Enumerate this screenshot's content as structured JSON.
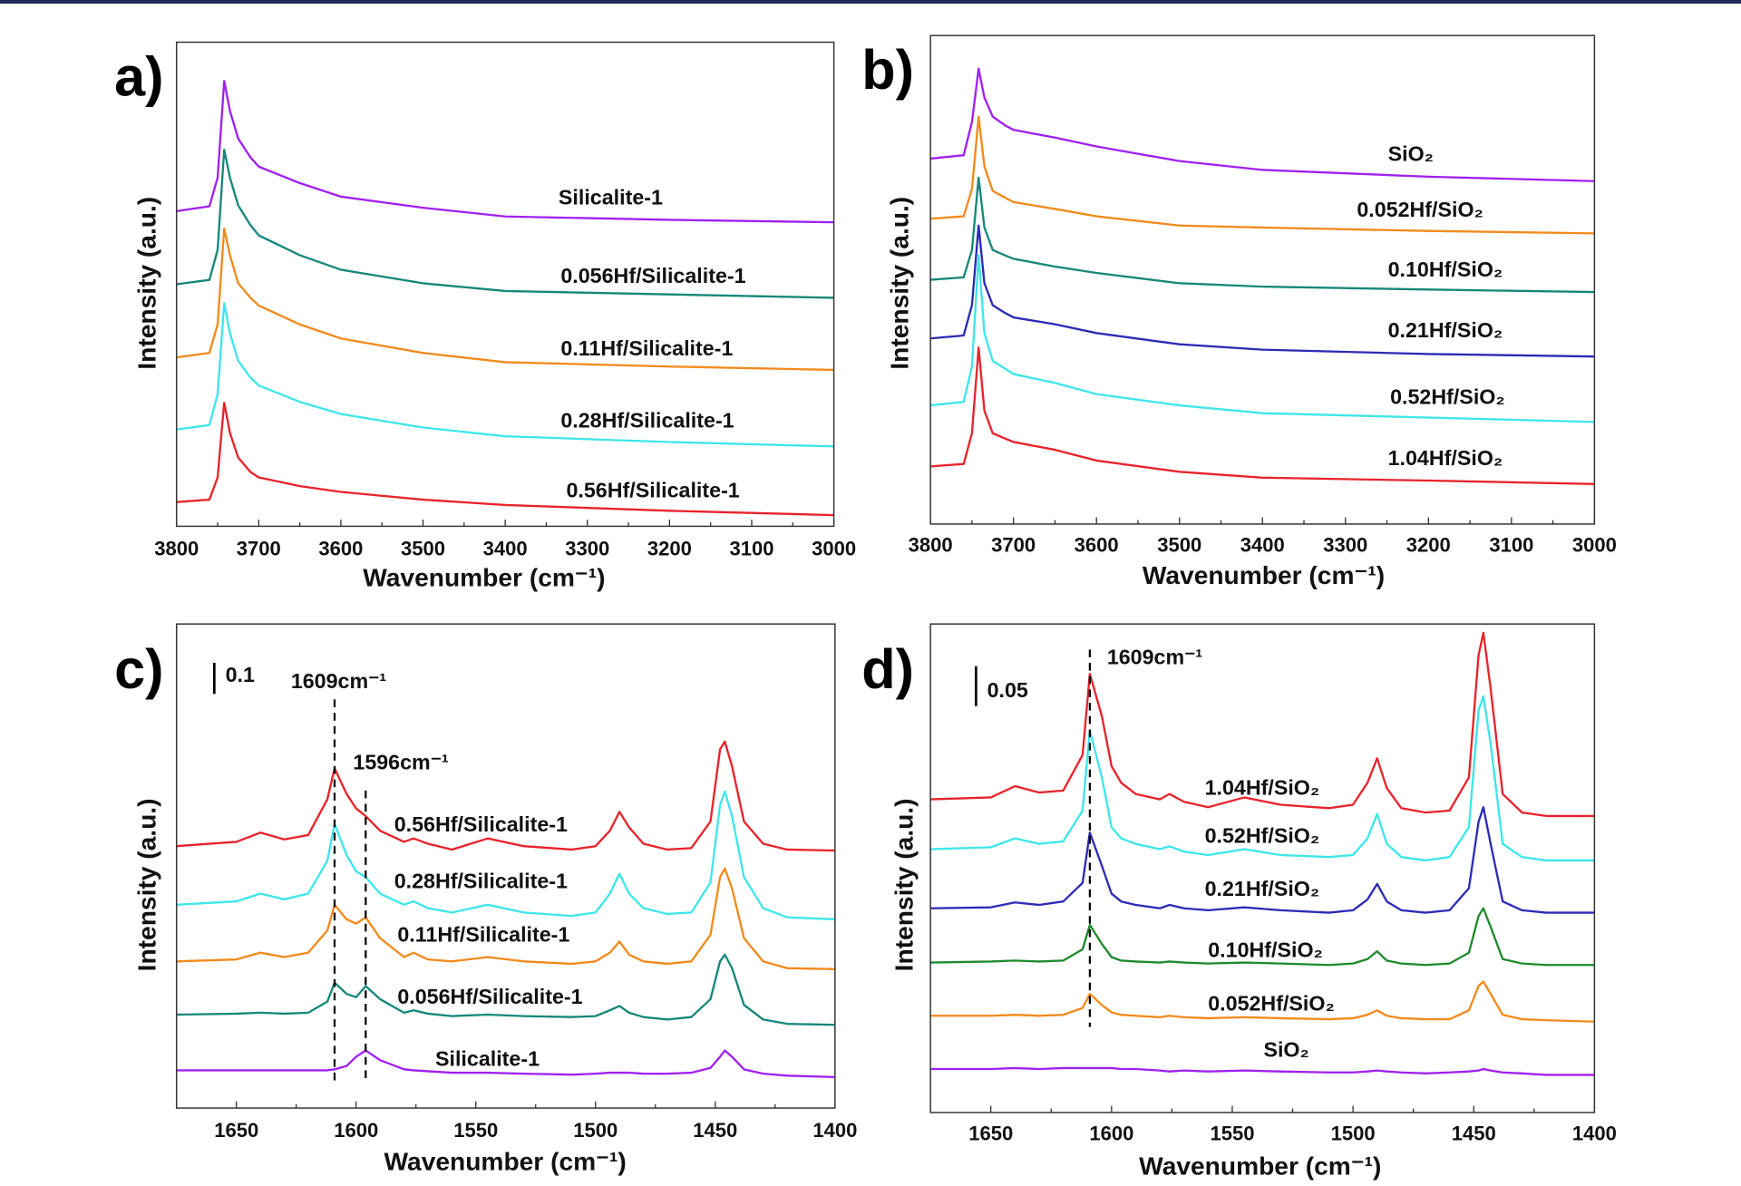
{
  "chart_data": [
    {
      "panel_label": "a)",
      "type": "line",
      "xlabel": "Wavenumber (cm⁻¹)",
      "ylabel": "Intensity (a.u.)",
      "xlim": [
        3800,
        3000
      ],
      "ylim": [
        0,
        10
      ],
      "xticks": [
        "3800",
        "3700",
        "3600",
        "3500",
        "3400",
        "3300",
        "3200",
        "3100",
        "3000"
      ],
      "grid": false,
      "x": [
        3800,
        3760,
        3750,
        3742,
        3735,
        3725,
        3710,
        3700,
        3650,
        3600,
        3500,
        3400,
        3200,
        3000
      ],
      "series": [
        {
          "name": "Silicalite-1",
          "color": "#a020f0",
          "values": [
            6.51,
            6.61,
            7.2,
            9.2,
            8.58,
            8.01,
            7.62,
            7.43,
            7.09,
            6.81,
            6.58,
            6.4,
            6.33,
            6.28
          ]
        },
        {
          "name": "0.056Hf/Silicalite-1",
          "color": "#16877a",
          "values": [
            5.0,
            5.09,
            5.71,
            7.78,
            7.2,
            6.63,
            6.22,
            6.01,
            5.6,
            5.3,
            5.02,
            4.86,
            4.79,
            4.72
          ]
        },
        {
          "name": "0.11Hf/Silicalite-1",
          "color": "#f28a1c",
          "values": [
            3.49,
            3.58,
            4.17,
            6.15,
            5.6,
            5.02,
            4.72,
            4.56,
            4.17,
            3.88,
            3.58,
            3.39,
            3.3,
            3.23
          ]
        },
        {
          "name": "0.28Hf/Silicalite-1",
          "color": "#3ee6ea",
          "values": [
            2.0,
            2.09,
            2.73,
            4.61,
            3.99,
            3.42,
            3.07,
            2.91,
            2.57,
            2.32,
            2.04,
            1.86,
            1.74,
            1.65
          ]
        },
        {
          "name": "0.56Hf/Silicalite-1",
          "color": "#e8232b",
          "values": [
            0.5,
            0.55,
            1.01,
            2.55,
            1.93,
            1.42,
            1.12,
            1.01,
            0.83,
            0.71,
            0.55,
            0.44,
            0.32,
            0.23
          ]
        }
      ]
    },
    {
      "panel_label": "b)",
      "type": "line",
      "xlabel": "Wavenumber (cm⁻¹)",
      "ylabel": "Intensity (a.u.)",
      "xlim": [
        3800,
        3000
      ],
      "ylim": [
        0,
        10
      ],
      "xticks": [
        "3800",
        "3700",
        "3600",
        "3500",
        "3400",
        "3300",
        "3200",
        "3100",
        "3000"
      ],
      "grid": false,
      "x": [
        3800,
        3760,
        3750,
        3742,
        3735,
        3725,
        3710,
        3700,
        3650,
        3600,
        3500,
        3400,
        3200,
        3000
      ],
      "series": [
        {
          "name": "SiO₂",
          "color": "#a020f0",
          "values": [
            7.48,
            7.55,
            8.23,
            9.32,
            8.73,
            8.34,
            8.16,
            8.07,
            7.91,
            7.73,
            7.43,
            7.25,
            7.11,
            7.02
          ]
        },
        {
          "name": "0.052Hf/SiO₂",
          "color": "#f28a1c",
          "values": [
            6.25,
            6.3,
            6.86,
            8.34,
            7.32,
            6.82,
            6.68,
            6.59,
            6.45,
            6.3,
            6.11,
            6.07,
            6.0,
            5.95
          ]
        },
        {
          "name": "0.10Hf/SiO₂",
          "color": "#16877a",
          "values": [
            5.0,
            5.05,
            5.61,
            7.09,
            6.07,
            5.61,
            5.5,
            5.43,
            5.27,
            5.14,
            4.93,
            4.86,
            4.8,
            4.75
          ]
        },
        {
          "name": "0.21Hf/SiO₂",
          "color": "#2b2bb5",
          "values": [
            3.8,
            3.86,
            4.48,
            6.11,
            4.93,
            4.48,
            4.32,
            4.23,
            4.09,
            3.91,
            3.68,
            3.57,
            3.48,
            3.43
          ]
        },
        {
          "name": "0.52Hf/SiO₂",
          "color": "#3ee6ea",
          "values": [
            2.43,
            2.5,
            3.23,
            5.5,
            3.91,
            3.34,
            3.18,
            3.07,
            2.89,
            2.66,
            2.43,
            2.27,
            2.18,
            2.09
          ]
        },
        {
          "name": "1.04Hf/SiO₂",
          "color": "#e8232b",
          "values": [
            1.18,
            1.23,
            1.86,
            3.61,
            2.32,
            1.86,
            1.75,
            1.68,
            1.52,
            1.3,
            1.07,
            0.95,
            0.89,
            0.82
          ]
        }
      ]
    },
    {
      "panel_label": "c)",
      "type": "line",
      "xlabel": "Wavenumber (cm⁻¹)",
      "ylabel": "Intensity (a.u.)",
      "xlim": [
        1675,
        1400
      ],
      "ylim": [
        0,
        10
      ],
      "xticks": [
        "1650",
        "1600",
        "1550",
        "1500",
        "1450",
        "1400"
      ],
      "grid": false,
      "scale_bar": "0.1",
      "markers": [
        {
          "x": 1609,
          "label": "1609cm⁻¹"
        },
        {
          "x": 1596,
          "label": "1596cm⁻¹"
        }
      ],
      "x": [
        1675,
        1650,
        1640,
        1630,
        1620,
        1612,
        1609,
        1604,
        1600,
        1596,
        1590,
        1580,
        1576,
        1570,
        1560,
        1545,
        1530,
        1510,
        1500,
        1494,
        1490,
        1486,
        1480,
        1470,
        1460,
        1452,
        1448,
        1446,
        1443,
        1438,
        1430,
        1420,
        1400
      ],
      "series": [
        {
          "name": "0.56Hf/Silicalite-1",
          "color": "#e8232b",
          "values": [
            5.41,
            5.5,
            5.69,
            5.55,
            5.64,
            6.38,
            7.02,
            6.49,
            6.19,
            6.03,
            5.73,
            5.5,
            5.57,
            5.46,
            5.34,
            5.57,
            5.41,
            5.34,
            5.41,
            5.73,
            6.12,
            5.8,
            5.46,
            5.34,
            5.37,
            5.92,
            7.41,
            7.57,
            7.06,
            5.92,
            5.46,
            5.34,
            5.32
          ]
        },
        {
          "name": "0.28Hf/Silicalite-1",
          "color": "#3ee6ea",
          "values": [
            4.2,
            4.27,
            4.43,
            4.31,
            4.43,
            5.11,
            5.87,
            5.23,
            4.89,
            4.77,
            4.43,
            4.2,
            4.27,
            4.13,
            4.04,
            4.2,
            4.04,
            3.97,
            4.04,
            4.43,
            4.84,
            4.43,
            4.13,
            4.01,
            4.04,
            4.66,
            6.26,
            6.54,
            6.03,
            4.77,
            4.13,
            3.94,
            3.9
          ]
        },
        {
          "name": "0.11Hf/Silicalite-1",
          "color": "#f28a1c",
          "values": [
            3.03,
            3.07,
            3.21,
            3.12,
            3.21,
            3.67,
            4.2,
            3.9,
            3.81,
            3.94,
            3.51,
            3.12,
            3.21,
            3.07,
            3.03,
            3.12,
            3.03,
            2.98,
            3.03,
            3.21,
            3.44,
            3.17,
            3.03,
            2.98,
            3.03,
            3.58,
            4.77,
            4.95,
            4.54,
            3.51,
            3.03,
            2.89,
            2.87
          ]
        },
        {
          "name": "0.056Hf/Silicalite-1",
          "color": "#16877a",
          "values": [
            1.93,
            1.95,
            1.97,
            1.95,
            1.97,
            2.2,
            2.59,
            2.36,
            2.29,
            2.52,
            2.25,
            1.97,
            2.02,
            1.95,
            1.9,
            1.93,
            1.9,
            1.88,
            1.9,
            2.02,
            2.11,
            1.97,
            1.88,
            1.83,
            1.88,
            2.25,
            3.03,
            3.17,
            2.89,
            2.13,
            1.83,
            1.74,
            1.72
          ]
        },
        {
          "name": "Silicalite-1",
          "color": "#a020f0",
          "values": [
            0.78,
            0.78,
            0.78,
            0.78,
            0.78,
            0.78,
            0.8,
            0.87,
            1.06,
            1.19,
            0.99,
            0.8,
            0.78,
            0.76,
            0.73,
            0.73,
            0.71,
            0.69,
            0.71,
            0.73,
            0.73,
            0.73,
            0.71,
            0.71,
            0.73,
            0.83,
            1.06,
            1.19,
            1.06,
            0.8,
            0.71,
            0.67,
            0.64
          ]
        }
      ]
    },
    {
      "panel_label": "d)",
      "type": "line",
      "xlabel": "Wavenumber (cm⁻¹)",
      "ylabel": "Intensity (a.u.)",
      "xlim": [
        1675,
        1400
      ],
      "ylim": [
        0,
        10
      ],
      "xticks": [
        "1650",
        "1600",
        "1550",
        "1500",
        "1450",
        "1400"
      ],
      "grid": false,
      "scale_bar": "0.05",
      "markers": [
        {
          "x": 1609,
          "label": "1609cm⁻¹"
        }
      ],
      "x": [
        1675,
        1650,
        1640,
        1630,
        1620,
        1612,
        1609,
        1604,
        1600,
        1596,
        1590,
        1580,
        1576,
        1570,
        1560,
        1545,
        1530,
        1510,
        1500,
        1494,
        1490,
        1486,
        1480,
        1470,
        1460,
        1452,
        1448,
        1446,
        1443,
        1438,
        1430,
        1420,
        1400
      ],
      "series": [
        {
          "name": "1.04Hf/SiO₂",
          "color": "#e8232b",
          "values": [
            6.41,
            6.45,
            6.68,
            6.55,
            6.59,
            7.32,
            8.98,
            8.11,
            7.09,
            6.75,
            6.52,
            6.41,
            6.52,
            6.36,
            6.25,
            6.45,
            6.3,
            6.23,
            6.3,
            6.75,
            7.25,
            6.64,
            6.23,
            6.14,
            6.18,
            6.86,
            9.36,
            9.82,
            8.68,
            6.52,
            6.14,
            6.07,
            6.07
          ]
        },
        {
          "name": "0.52Hf/SiO₂",
          "color": "#3ee6ea",
          "values": [
            5.39,
            5.43,
            5.61,
            5.5,
            5.55,
            6.18,
            7.82,
            6.86,
            5.84,
            5.61,
            5.5,
            5.39,
            5.45,
            5.34,
            5.27,
            5.39,
            5.27,
            5.23,
            5.27,
            5.61,
            6.11,
            5.5,
            5.23,
            5.16,
            5.23,
            5.84,
            8.23,
            8.52,
            7.55,
            5.5,
            5.23,
            5.16,
            5.16
          ]
        },
        {
          "name": "0.21Hf/SiO₂",
          "color": "#2b2bb5",
          "values": [
            4.18,
            4.2,
            4.3,
            4.25,
            4.32,
            4.7,
            5.73,
            5.05,
            4.48,
            4.32,
            4.25,
            4.18,
            4.25,
            4.18,
            4.14,
            4.2,
            4.14,
            4.09,
            4.14,
            4.36,
            4.68,
            4.32,
            4.14,
            4.09,
            4.14,
            4.59,
            5.95,
            6.25,
            5.5,
            4.32,
            4.14,
            4.09,
            4.09
          ]
        },
        {
          "name": "0.10Hf/SiO₂",
          "color": "#1e8a2c",
          "values": [
            3.07,
            3.09,
            3.11,
            3.09,
            3.11,
            3.34,
            3.84,
            3.45,
            3.18,
            3.11,
            3.09,
            3.07,
            3.09,
            3.07,
            3.05,
            3.07,
            3.05,
            3.02,
            3.05,
            3.14,
            3.3,
            3.11,
            3.05,
            3.02,
            3.05,
            3.27,
            4.02,
            4.18,
            3.8,
            3.14,
            3.05,
            3.02,
            3.02
          ]
        },
        {
          "name": "0.052Hf/SiO₂",
          "color": "#f28a1c",
          "values": [
            1.98,
            1.98,
            2.0,
            1.98,
            2.0,
            2.14,
            2.43,
            2.2,
            2.05,
            2.0,
            1.98,
            1.95,
            1.98,
            1.95,
            1.93,
            1.95,
            1.93,
            1.91,
            1.93,
            2.0,
            2.09,
            1.98,
            1.93,
            1.91,
            1.91,
            2.09,
            2.59,
            2.68,
            2.43,
            2.0,
            1.91,
            1.89,
            1.86
          ]
        },
        {
          "name": "SiO₂",
          "color": "#a020f0",
          "values": [
            0.89,
            0.89,
            0.91,
            0.89,
            0.91,
            0.91,
            0.91,
            0.91,
            0.91,
            0.89,
            0.89,
            0.86,
            0.84,
            0.86,
            0.84,
            0.86,
            0.84,
            0.82,
            0.82,
            0.84,
            0.86,
            0.84,
            0.82,
            0.8,
            0.82,
            0.84,
            0.86,
            0.89,
            0.86,
            0.82,
            0.8,
            0.77,
            0.77
          ]
        }
      ]
    }
  ]
}
